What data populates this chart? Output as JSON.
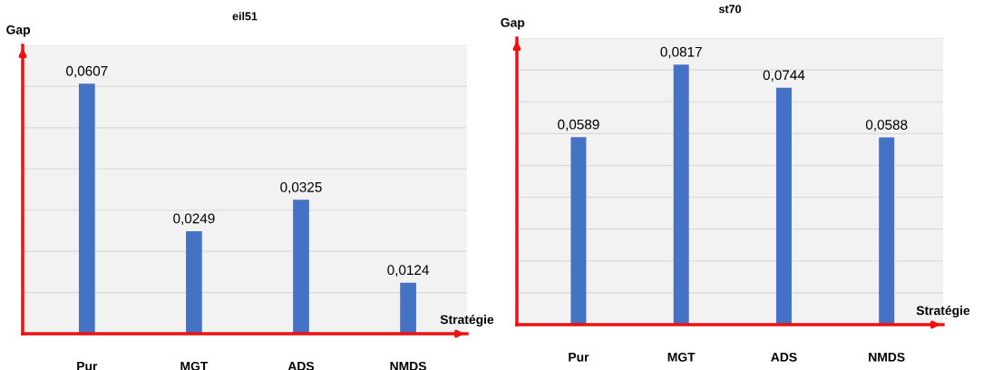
{
  "chart_data": [
    {
      "type": "bar",
      "title": "eil51",
      "xlabel": "Stratégie",
      "ylabel": "Gap",
      "categories": [
        "Pur",
        "MGT",
        "ADS",
        "NMDS"
      ],
      "values": [
        0.0607,
        0.0249,
        0.0325,
        0.0124
      ],
      "value_labels": [
        "0,0607",
        "0,0249",
        "0,0325",
        "0,0124"
      ],
      "color": "#4472c4",
      "ylim": [
        0,
        0.07
      ],
      "yticks": [
        {
          "value": 0,
          "label": null
        },
        {
          "value": 0.01,
          "label": null
        },
        {
          "value": 0.02,
          "label": null
        },
        {
          "value": 0.03,
          "label": null
        },
        {
          "value": 0.04,
          "label": null
        },
        {
          "value": 0.05,
          "label": null
        },
        {
          "value": 0.06,
          "label": null
        },
        {
          "value": 0.07,
          "label": null
        }
      ],
      "grid": "y",
      "tick_labels": "x"
    },
    {
      "type": "bar",
      "title": "st70",
      "xlabel": "Stratégie",
      "ylabel": "Gap",
      "categories": [
        "Pur",
        "MGT",
        "ADS",
        "NMDS"
      ],
      "values": [
        0.0589,
        0.0817,
        0.0744,
        0.0588
      ],
      "value_labels": [
        "0,0589",
        "0,0817",
        "0,0744",
        "0,0588"
      ],
      "color": "#4472c4",
      "ylim": [
        0,
        0.09
      ],
      "yticks": [
        {
          "value": 0,
          "label": null
        },
        {
          "value": 0.01,
          "label": null
        },
        {
          "value": 0.02,
          "label": null
        },
        {
          "value": 0.03,
          "label": null
        },
        {
          "value": 0.04,
          "label": null
        },
        {
          "value": 0.05,
          "label": null
        },
        {
          "value": 0.06,
          "label": null
        },
        {
          "value": 0.07,
          "label": null
        },
        {
          "value": 0.08,
          "label": null
        },
        {
          "value": 0.09,
          "label": null
        }
      ],
      "grid": "y",
      "tick_labels": "x"
    }
  ]
}
